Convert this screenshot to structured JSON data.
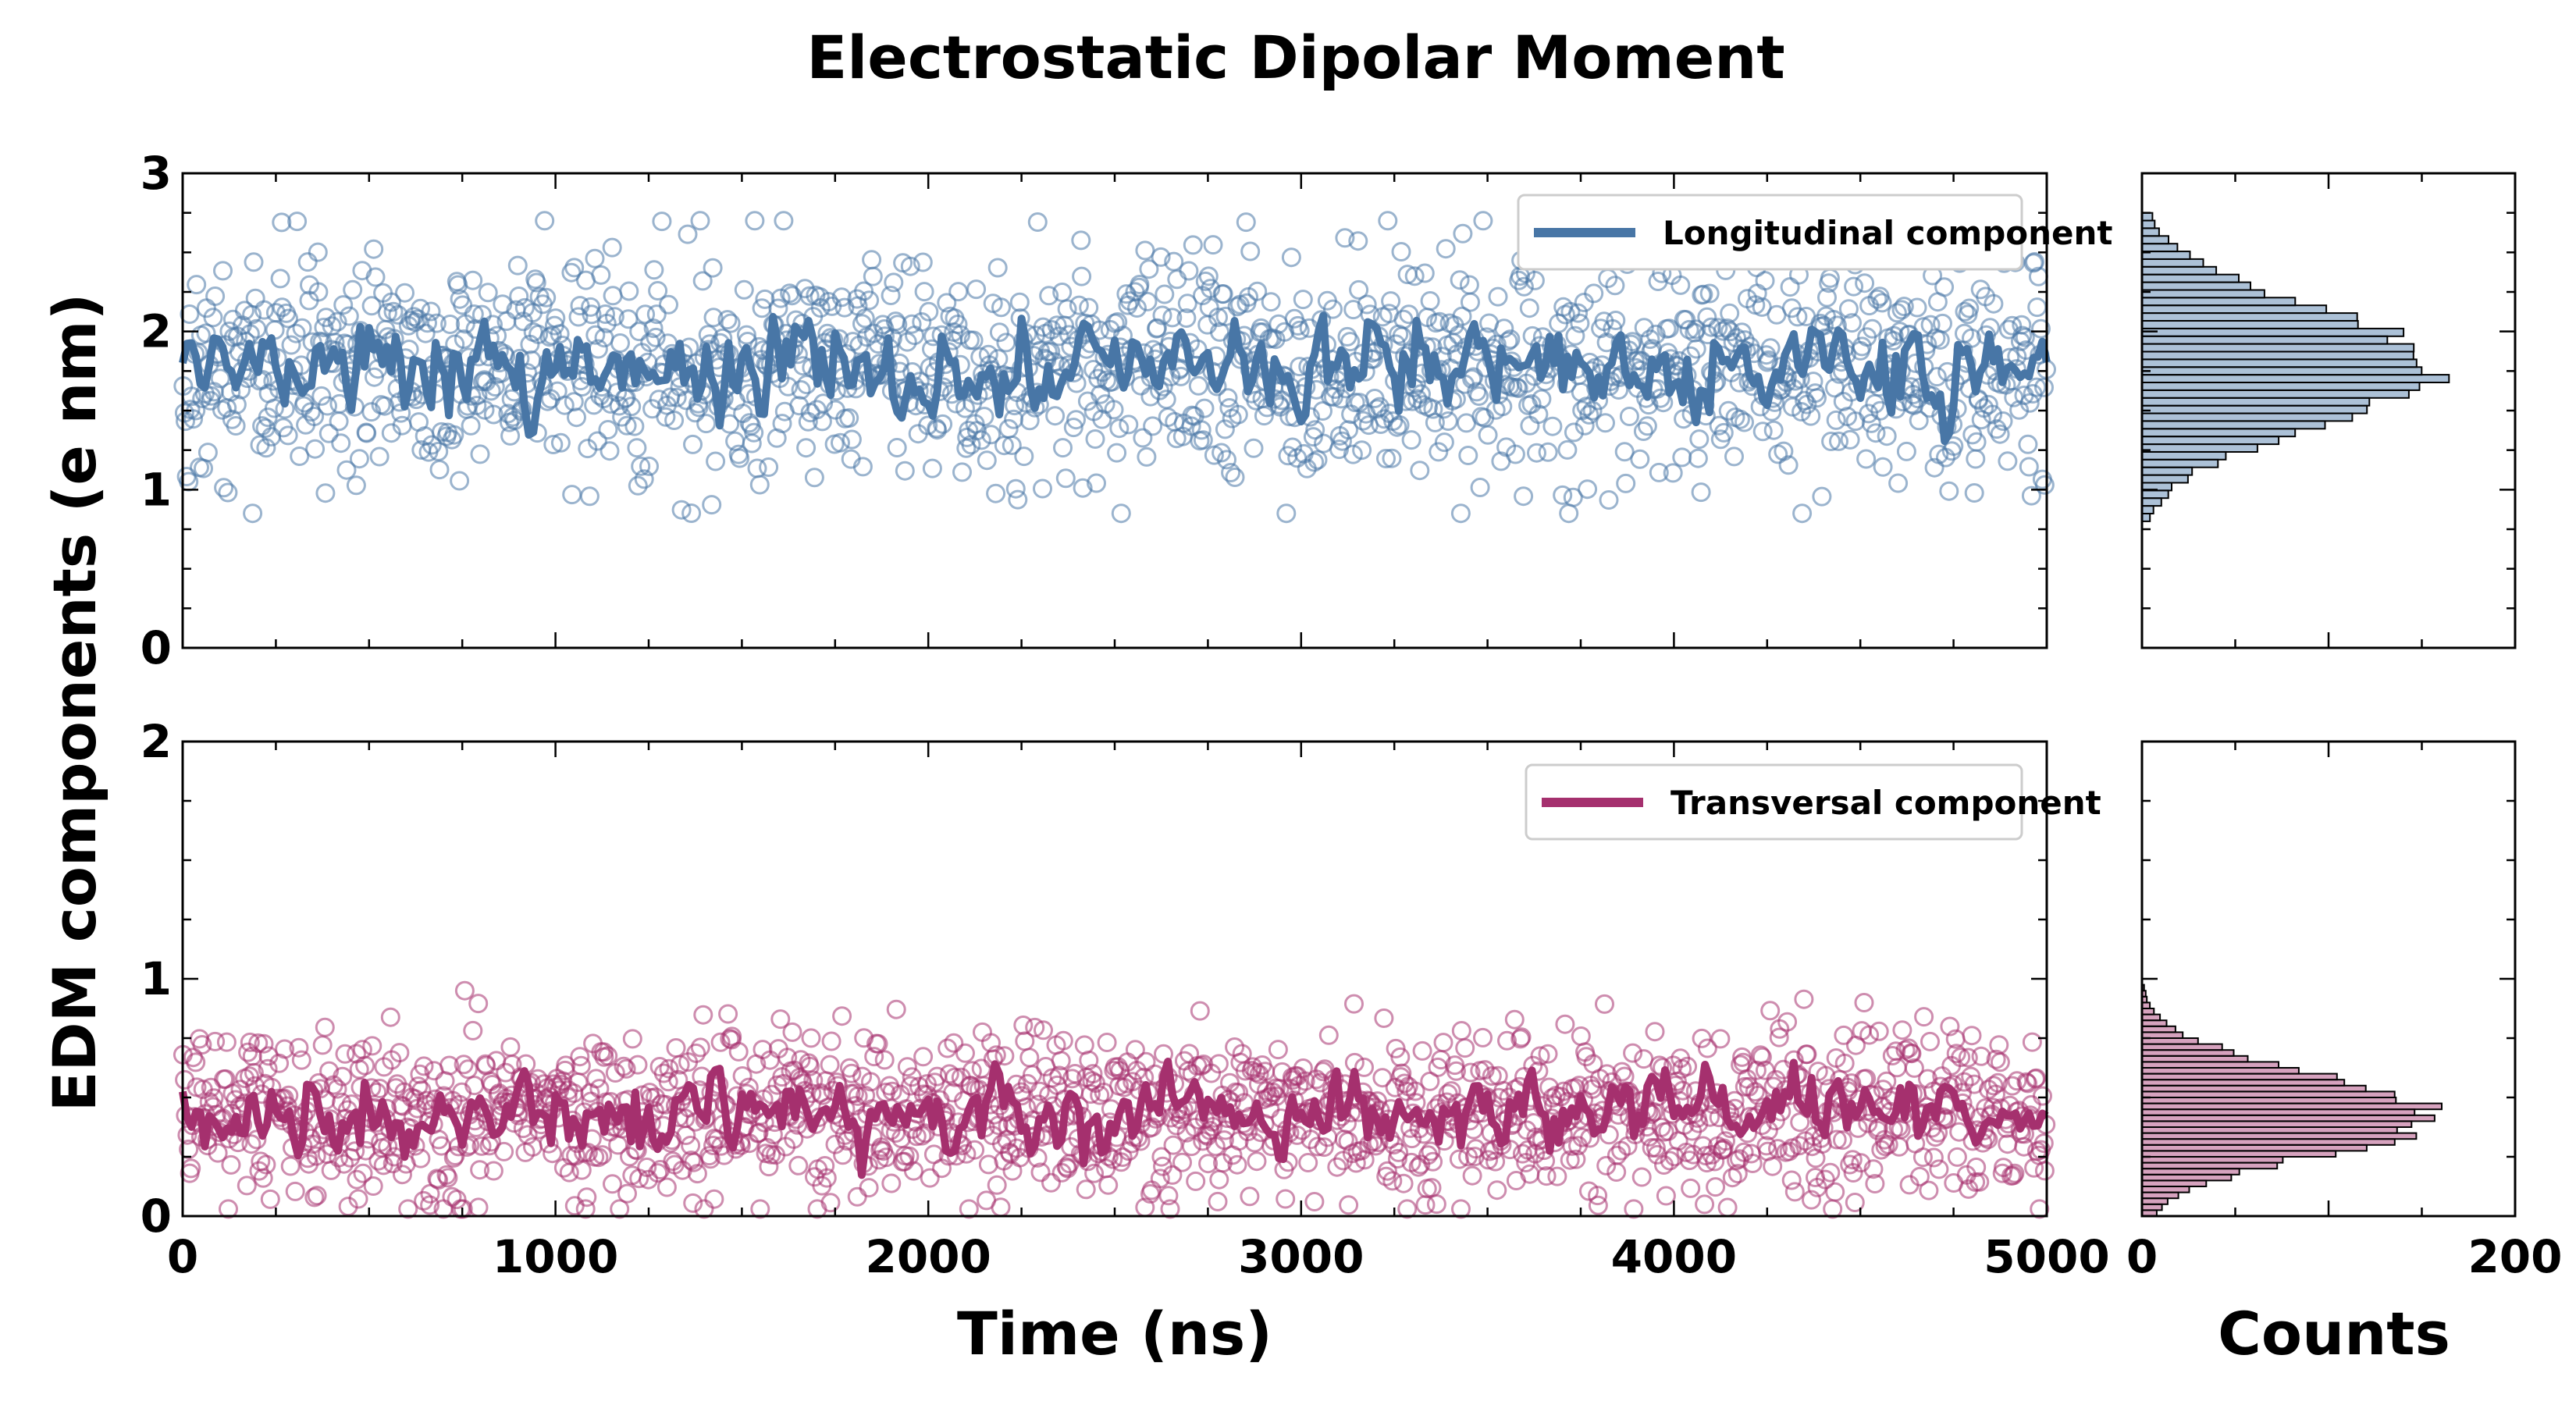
{
  "chart_data": {
    "type": "scatter",
    "title": "Electrostatic Dipolar Moment",
    "ylabel": "EDM components (e nm)",
    "xlabel": "Time (ns)",
    "hist_xlabel": "Counts",
    "xlim": [
      0,
      5000
    ],
    "hist_xlim": [
      0,
      200
    ],
    "x_ticks": [
      "0",
      "1000",
      "2000",
      "3000",
      "4000",
      "5000"
    ],
    "hist_x_ticks": [
      "0",
      "200"
    ],
    "panels": [
      {
        "id": "longitudinal",
        "legend": "Longitudinal component",
        "color": "#4876a6",
        "ylim": [
          0,
          3
        ],
        "y_ticks": [
          "0",
          "1",
          "2",
          "3"
        ],
        "scatter_mean": 1.78,
        "scatter_std": 0.36,
        "scatter_min": 0.85,
        "scatter_max": 2.7,
        "running_mean": 1.78,
        "running_std": 0.13,
        "hist_range": [
          0.8,
          2.75
        ],
        "hist_peak": 165
      },
      {
        "id": "transversal",
        "legend": "Transversal component",
        "color": "#a5306e",
        "ylim": [
          0,
          2
        ],
        "y_ticks": [
          "0",
          "1",
          "2"
        ],
        "scatter_mean": 0.43,
        "scatter_std": 0.17,
        "scatter_min": 0.03,
        "scatter_max": 1.02,
        "running_mean": 0.44,
        "running_std": 0.07,
        "hist_range": [
          0.0,
          1.0
        ],
        "hist_peak": 160
      }
    ]
  }
}
